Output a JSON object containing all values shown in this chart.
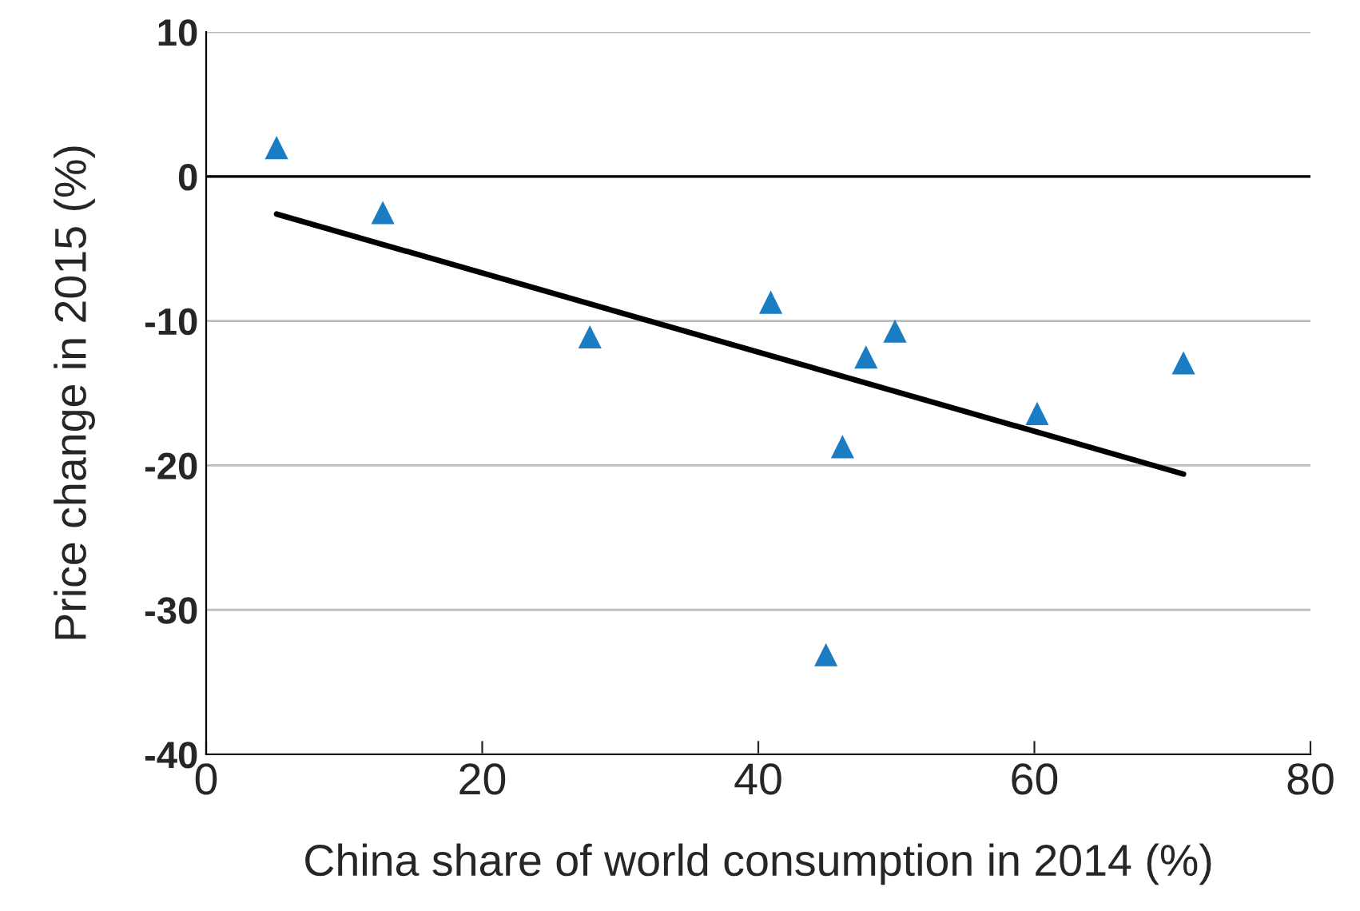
{
  "chart_data": {
    "type": "scatter",
    "xlabel": "China share of world consumption in 2014 (%)",
    "ylabel": "Price change in 2015 (%)",
    "series": [
      {
        "marker": "triangle",
        "color": "#1a7dc4",
        "x": [
          5.1,
          12.8,
          27.8,
          40.9,
          49.9,
          47.8,
          46.1,
          60.2,
          70.8,
          44.9
        ],
        "values": [
          2.0,
          -2.5,
          -11.1,
          -8.7,
          -10.7,
          -12.5,
          -18.7,
          -16.4,
          -12.9,
          -33.1
        ]
      },
      {
        "type": "line",
        "marker": "none",
        "color": "#000000",
        "x": [
          5.1,
          70.8
        ],
        "values": [
          -2.6,
          -20.6
        ]
      }
    ],
    "xlim": [
      0,
      80
    ],
    "ylim": [
      -40,
      10
    ],
    "xticks": [
      0,
      20,
      40,
      60,
      80
    ],
    "yticks": [
      -40,
      -30,
      -20,
      -10,
      0,
      10
    ],
    "grid": "y",
    "ref_lines": [
      {
        "axis": "y",
        "value": 0,
        "color": "#000000"
      }
    ]
  }
}
